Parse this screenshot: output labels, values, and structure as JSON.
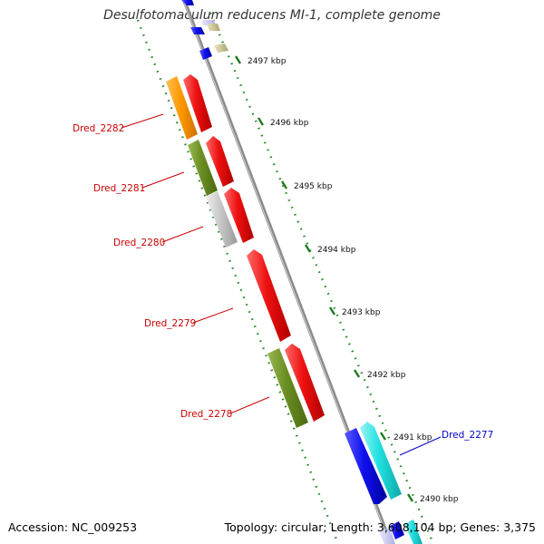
{
  "title": "Desulfotomaculum reducens MI-1, complete genome",
  "footer": {
    "accession": "Accession: NC_009253",
    "summary": "Topology: circular; Length: 3,608,104 bp; Genes: 3,375"
  },
  "ticks": [
    "2497 kbp",
    "2496 kbp",
    "2495 kbp",
    "2494 kbp",
    "2493 kbp",
    "2492 kbp",
    "2491 kbp",
    "2490 kbp"
  ],
  "gene_labels": [
    {
      "name": "Dred_2282",
      "color": "#cc0000"
    },
    {
      "name": "Dred_2281",
      "color": "#cc0000"
    },
    {
      "name": "Dred_2280",
      "color": "#cc0000"
    },
    {
      "name": "Dred_2279",
      "color": "#cc0000"
    },
    {
      "name": "Dred_2278",
      "color": "#cc0000"
    },
    {
      "name": "Dred_2277",
      "color": "#0000cc"
    }
  ],
  "colors": {
    "backbone": "#8a8a8a",
    "dotted_guides": "#2a8a2a",
    "red": "#ee1111",
    "orange": "#ff9900",
    "olive": "#6b8e23",
    "gray": "#c8c8c8",
    "blue": "#1010ee",
    "cyan": "#22e0e0",
    "khaki": "#cfc99a"
  }
}
